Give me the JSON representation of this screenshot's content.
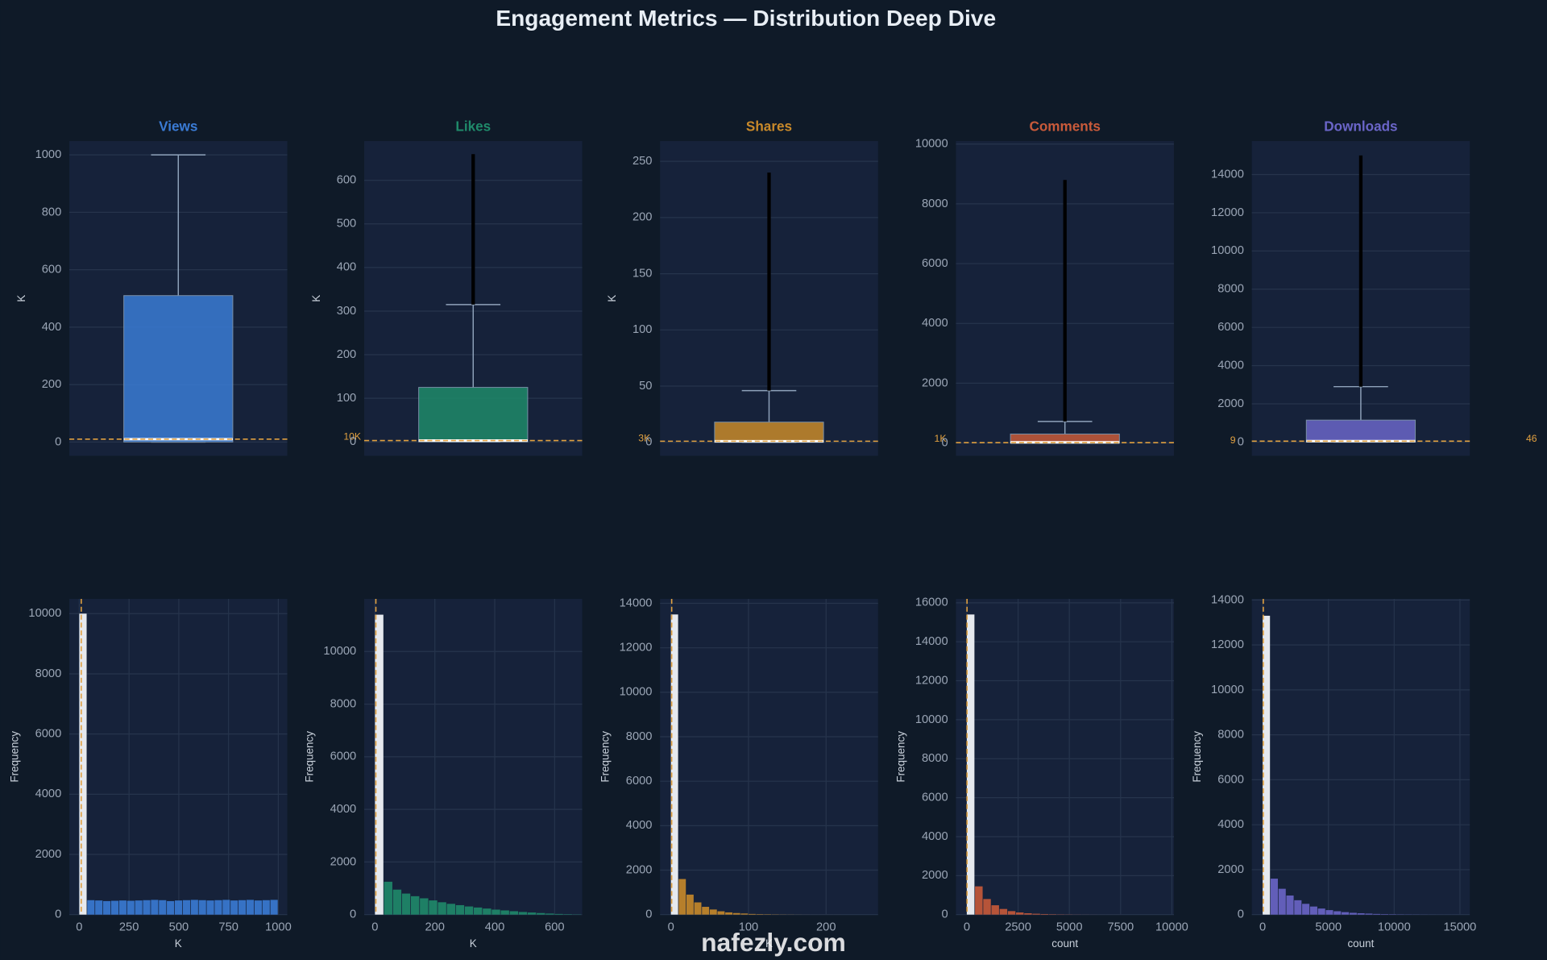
{
  "title": "Engagement Metrics — Distribution Deep Dive",
  "watermark": "nafezly.com",
  "chart_data": [
    {
      "type": "box",
      "title": "Views",
      "ylabel": "K",
      "color": "#3a7bd5",
      "ylim": [
        -48,
        1048
      ],
      "yticks": [
        0,
        200,
        400,
        600,
        800,
        1000
      ],
      "grid": true,
      "whisker_low": 0,
      "q1": 0,
      "median": 10,
      "q3": 510,
      "whisker_high": 1000,
      "outlier_max": 1000,
      "reference": 10,
      "reference_label": "10K"
    },
    {
      "type": "box",
      "title": "Likes",
      "ylabel": "K",
      "color": "#1f8a6a",
      "ylim": [
        -32,
        690
      ],
      "yticks": [
        0,
        100,
        200,
        300,
        400,
        500,
        600
      ],
      "grid": true,
      "whisker_low": 0,
      "q1": 0,
      "median": 3,
      "q3": 125,
      "whisker_high": 315,
      "outlier_max": 660,
      "reference": 3,
      "reference_label": "3K"
    },
    {
      "type": "box",
      "title": "Shares",
      "ylabel": "K",
      "color": "#c8892a",
      "ylim": [
        -12,
        268
      ],
      "yticks": [
        0,
        50,
        100,
        150,
        200,
        250
      ],
      "grid": true,
      "whisker_low": 0,
      "q1": 0,
      "median": 1,
      "q3": 18,
      "whisker_high": 46,
      "outlier_max": 240,
      "reference": 1,
      "reference_label": "1K"
    },
    {
      "type": "box",
      "title": "Comments",
      "color": "#c85a3a",
      "ylim": [
        -430,
        10100
      ],
      "yticks": [
        0,
        2000,
        4000,
        6000,
        8000,
        10000
      ],
      "grid": true,
      "whisker_low": 0,
      "q1": 0,
      "median": 20,
      "q3": 300,
      "whisker_high": 720,
      "outlier_max": 8800,
      "reference": 9,
      "reference_label": "9"
    },
    {
      "type": "box",
      "title": "Downloads",
      "color": "#6a65c8",
      "ylim": [
        -720,
        15750
      ],
      "yticks": [
        0,
        2000,
        4000,
        6000,
        8000,
        10000,
        12000,
        14000
      ],
      "grid": true,
      "whisker_low": 0,
      "q1": 0,
      "median": 50,
      "q3": 1150,
      "whisker_high": 2900,
      "outlier_max": 15000,
      "reference": 46,
      "reference_label": "46"
    },
    {
      "type": "histogram",
      "xlabel": "K",
      "ylabel": "Frequency",
      "color": "#3a7bd5",
      "highlight_color": "#e6e9ee",
      "grid": true,
      "xlim": [
        -50,
        1045
      ],
      "xticks": [
        0,
        250,
        500,
        750,
        1000
      ],
      "ylim": [
        0,
        10490
      ],
      "yticks": [
        0,
        2000,
        4000,
        6000,
        8000,
        10000
      ],
      "reference": 10,
      "bins": [
        0,
        40,
        80,
        120,
        160,
        200,
        240,
        280,
        320,
        360,
        400,
        440,
        480,
        520,
        560,
        600,
        640,
        680,
        720,
        760,
        800,
        840,
        880,
        920,
        960,
        1000
      ],
      "counts": [
        10000,
        480,
        470,
        450,
        460,
        470,
        460,
        470,
        480,
        490,
        480,
        450,
        470,
        480,
        490,
        480,
        470,
        480,
        490,
        470,
        480,
        490,
        470,
        480,
        490
      ]
    },
    {
      "type": "histogram",
      "xlabel": "K",
      "ylabel": "Frequency",
      "color": "#1f8a6a",
      "highlight_color": "#e6e9ee",
      "grid": true,
      "xlim": [
        -36,
        692
      ],
      "xticks": [
        0,
        200,
        400,
        600
      ],
      "ylim": [
        0,
        12000
      ],
      "yticks": [
        0,
        2000,
        4000,
        6000,
        8000,
        10000
      ],
      "reference": 3,
      "bins": [
        0,
        30,
        60,
        90,
        120,
        150,
        180,
        210,
        240,
        270,
        300,
        330,
        360,
        390,
        420,
        450,
        480,
        510,
        540,
        570,
        600,
        630,
        660,
        690
      ],
      "counts": [
        11400,
        1250,
        950,
        800,
        700,
        620,
        540,
        470,
        410,
        360,
        310,
        270,
        230,
        190,
        160,
        130,
        100,
        80,
        60,
        40,
        25,
        15,
        8
      ]
    },
    {
      "type": "histogram",
      "xlabel": "K",
      "ylabel": "Frequency",
      "color": "#c8892a",
      "highlight_color": "#e6e9ee",
      "grid": true,
      "xlim": [
        -14,
        267
      ],
      "xticks": [
        0,
        100,
        200
      ],
      "ylim": [
        0,
        14200
      ],
      "yticks": [
        0,
        2000,
        4000,
        6000,
        8000,
        10000,
        12000,
        14000
      ],
      "reference": 1,
      "bins": [
        0,
        10,
        20,
        30,
        40,
        50,
        60,
        70,
        80,
        90,
        100,
        110,
        120,
        130,
        140,
        150,
        160,
        170,
        180,
        190,
        200,
        210,
        220,
        230,
        240,
        250
      ],
      "counts": [
        13500,
        1600,
        900,
        550,
        350,
        230,
        150,
        100,
        70,
        50,
        30,
        20,
        15,
        10,
        7,
        5,
        3,
        2,
        1,
        1,
        1,
        1,
        0,
        0,
        0
      ]
    },
    {
      "type": "histogram",
      "xlabel": "count",
      "ylabel": "Frequency",
      "color": "#c85a3a",
      "highlight_color": "#e6e9ee",
      "grid": true,
      "xlim": [
        -530,
        10100
      ],
      "xticks": [
        0,
        2500,
        5000,
        7500,
        10000
      ],
      "ylim": [
        0,
        16200
      ],
      "yticks": [
        0,
        2000,
        4000,
        6000,
        8000,
        10000,
        12000,
        14000,
        16000
      ],
      "reference": 9,
      "bins": [
        0,
        400,
        800,
        1200,
        1600,
        2000,
        2400,
        2800,
        3200,
        3600,
        4000,
        4400,
        4800,
        5200,
        5600,
        6000,
        6400,
        6800,
        7200,
        7600,
        8000,
        8400,
        8800,
        9200,
        9600,
        10000
      ],
      "counts": [
        15400,
        1450,
        800,
        480,
        290,
        180,
        110,
        70,
        45,
        30,
        20,
        12,
        8,
        5,
        3,
        2,
        1,
        1,
        1,
        0,
        0,
        0,
        0,
        0,
        0
      ]
    },
    {
      "type": "histogram",
      "xlabel": "count",
      "ylabel": "Frequency",
      "color": "#6a65c8",
      "highlight_color": "#e6e9ee",
      "grid": true,
      "xlim": [
        -825,
        15750
      ],
      "xticks": [
        0,
        5000,
        10000,
        15000
      ],
      "ylim": [
        0,
        14050
      ],
      "yticks": [
        0,
        2000,
        4000,
        6000,
        8000,
        10000,
        12000,
        14000
      ],
      "reference": 46,
      "bins": [
        0,
        600,
        1200,
        1800,
        2400,
        3000,
        3600,
        4200,
        4800,
        5400,
        6000,
        6600,
        7200,
        7800,
        8400,
        9000,
        9600,
        10200,
        10800,
        11400,
        12000,
        12600,
        13200,
        13800,
        14400,
        15000
      ],
      "counts": [
        13300,
        1600,
        1150,
        850,
        640,
        480,
        360,
        270,
        200,
        150,
        110,
        80,
        60,
        45,
        30,
        20,
        15,
        10,
        7,
        5,
        3,
        2,
        1,
        1,
        1
      ]
    }
  ]
}
